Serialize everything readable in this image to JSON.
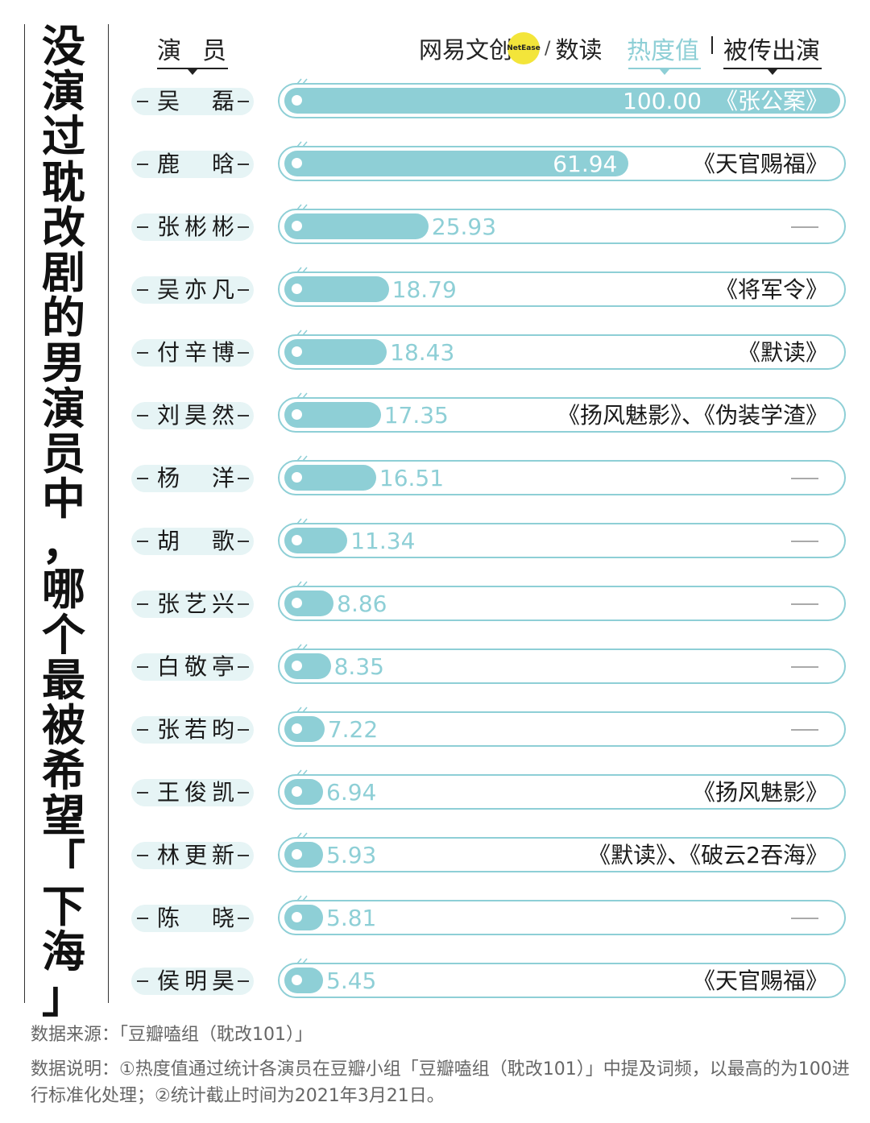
{
  "title": "没演过耽改剧的男演员中，哪个最被希望「下海」",
  "header": {
    "actor": "演员",
    "logo_cn": "网易文创",
    "logo_en": "NetEase",
    "logo_sub": "数读",
    "heat": "热度值",
    "drama": "被传出演"
  },
  "colors": {
    "accent": "#8ecfd6",
    "pill": "#e6f4f5",
    "logo_yellow": "#f3e53a"
  },
  "chart_data": {
    "type": "bar",
    "orientation": "horizontal",
    "xlim": [
      0,
      100
    ],
    "categories": [
      "吴磊",
      "鹿晗",
      "张彬彬",
      "吴亦凡",
      "付辛博",
      "刘昊然",
      "杨洋",
      "胡歌",
      "张艺兴",
      "白敬亭",
      "张若昀",
      "王俊凯",
      "林更新",
      "陈晓",
      "侯明昊"
    ],
    "values": [
      100.0,
      61.94,
      25.93,
      18.79,
      18.43,
      17.35,
      16.51,
      11.34,
      8.86,
      8.35,
      7.22,
      6.94,
      5.93,
      5.81,
      5.45
    ],
    "value_labels": [
      "100.00",
      "61.94",
      "25.93",
      "18.79",
      "18.43",
      "17.35",
      "16.51",
      "11.34",
      "8.86",
      "8.35",
      "7.22",
      "6.94",
      "5.93",
      "5.81",
      "5.45"
    ],
    "annotations": [
      "《张公案》",
      "《天官赐福》",
      "—",
      "《将军令》",
      "《默读》",
      "《扬风魅影》、《伪装学渣》",
      "—",
      "—",
      "—",
      "—",
      "—",
      "《扬风魅影》",
      "《默读》、《破云2吞海》",
      "—",
      "《天官赐福》"
    ]
  },
  "footer": {
    "source": "数据来源：「豆瓣嗑组（耽改101）」",
    "note": "数据说明：①热度值通过统计各演员在豆瓣小组「豆瓣嗑组（耽改101）」中提及词频，以最高的为100进行标准化处理；②统计截止时间为2021年3月21日。"
  }
}
